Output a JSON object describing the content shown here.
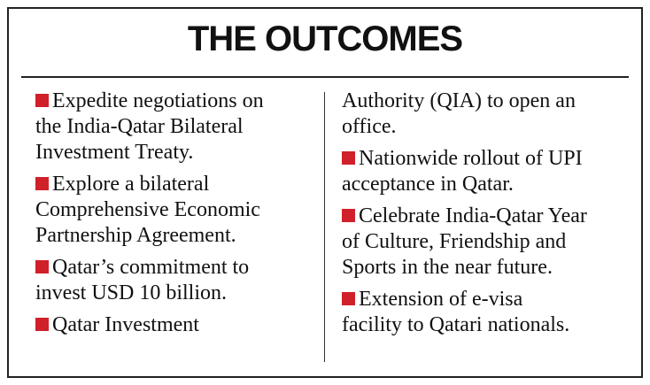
{
  "title": "THE OUTCOMES",
  "columns": [
    {
      "blocks": [
        {
          "bullet": true,
          "lines": [
            "Expedite negotiations on",
            "the India-Qatar Bilateral",
            "Investment Treaty."
          ]
        },
        {
          "bullet": true,
          "lines": [
            "Explore a bilateral",
            "Comprehensive Economic",
            "Partnership Agreement."
          ]
        },
        {
          "bullet": true,
          "lines": [
            "Qatar’s commitment to",
            "invest USD 10 billion."
          ]
        },
        {
          "bullet": true,
          "lines": [
            "Qatar Investment"
          ]
        }
      ]
    },
    {
      "blocks": [
        {
          "bullet": false,
          "lines": [
            "Authority (QIA) to open an",
            "office."
          ]
        },
        {
          "bullet": true,
          "lines": [
            "Nationwide rollout of UPI",
            "acceptance in Qatar."
          ]
        },
        {
          "bullet": true,
          "lines": [
            "Celebrate India-Qatar Year",
            "of Culture, Friendship and",
            "Sports in the near future."
          ]
        },
        {
          "bullet": true,
          "lines": [
            "Extension of e-visa",
            "facility to Qatari nationals."
          ]
        }
      ]
    }
  ]
}
